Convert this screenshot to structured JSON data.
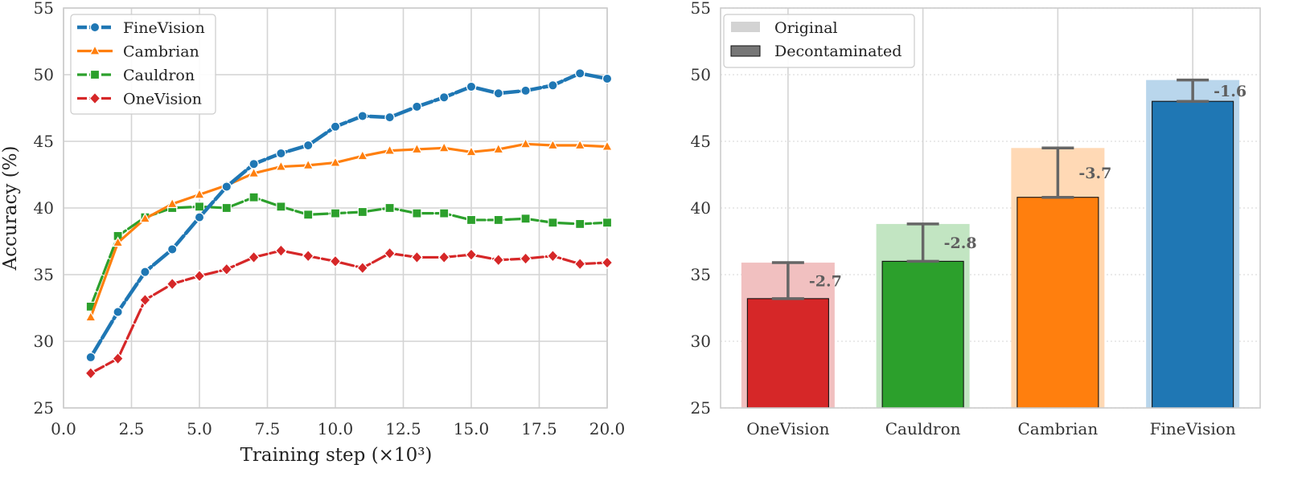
{
  "chart_data": [
    {
      "type": "line",
      "xlabel": "Training step (×10³)",
      "ylabel": "Accuracy (%)",
      "xlim": [
        0,
        20
      ],
      "ylim": [
        25,
        55
      ],
      "xticks": [
        "0.0",
        "2.5",
        "5.0",
        "7.5",
        "10.0",
        "12.5",
        "15.0",
        "17.5",
        "20.0"
      ],
      "yticks": [
        "25",
        "30",
        "35",
        "40",
        "45",
        "50",
        "55"
      ],
      "x": [
        1,
        2,
        3,
        4,
        5,
        6,
        7,
        8,
        9,
        10,
        11,
        12,
        13,
        14,
        15,
        16,
        17,
        18,
        19,
        20
      ],
      "legend_position": "top-left",
      "series": [
        {
          "name": "FineVision",
          "color": "#1f77b4",
          "marker": "circle",
          "style": "dashed",
          "values": [
            28.8,
            32.2,
            35.2,
            36.9,
            39.3,
            41.6,
            43.3,
            44.1,
            44.7,
            46.1,
            46.9,
            46.8,
            47.6,
            48.3,
            49.1,
            48.6,
            48.8,
            49.2,
            50.1,
            49.7
          ]
        },
        {
          "name": "Cambrian",
          "color": "#ff7f0e",
          "marker": "triangle",
          "style": "solid",
          "values": [
            31.8,
            37.4,
            39.2,
            40.3,
            41.0,
            41.7,
            42.6,
            43.1,
            43.2,
            43.4,
            43.9,
            44.3,
            44.4,
            44.5,
            44.2,
            44.4,
            44.8,
            44.7,
            44.7,
            44.6
          ]
        },
        {
          "name": "Cauldron",
          "color": "#2ca02c",
          "marker": "square",
          "style": "dashed",
          "values": [
            32.6,
            37.9,
            39.3,
            40.0,
            40.1,
            40.0,
            40.8,
            40.1,
            39.5,
            39.6,
            39.7,
            40.0,
            39.6,
            39.6,
            39.1,
            39.1,
            39.2,
            38.9,
            38.8,
            38.9
          ]
        },
        {
          "name": "OneVision",
          "color": "#d62728",
          "marker": "diamond",
          "style": "dashed",
          "values": [
            27.6,
            28.7,
            33.1,
            34.3,
            34.9,
            35.4,
            36.3,
            36.8,
            36.4,
            36.0,
            35.5,
            36.6,
            36.3,
            36.3,
            36.5,
            36.1,
            36.2,
            36.4,
            35.8,
            35.9
          ]
        }
      ]
    },
    {
      "type": "bar",
      "ylim": [
        25,
        55
      ],
      "yticks": [
        "25",
        "30",
        "35",
        "40",
        "45",
        "50",
        "55"
      ],
      "categories": [
        "OneVision",
        "Cauldron",
        "Cambrian",
        "FineVision"
      ],
      "legend_position": "top-left",
      "legend": [
        "Original",
        "Decontaminated"
      ],
      "series": [
        {
          "name": "Original",
          "values": [
            35.9,
            38.8,
            44.5,
            49.6
          ]
        },
        {
          "name": "Decontaminated",
          "values": [
            33.2,
            36.0,
            40.8,
            48.0
          ]
        }
      ],
      "colors": [
        "#d62728",
        "#2ca02c",
        "#ff7f0e",
        "#1f77b4"
      ],
      "light_colors": [
        "#f1c0c0",
        "#c2e5c2",
        "#ffd9b5",
        "#b9d6ec"
      ],
      "diff_labels": [
        "-2.7",
        "-2.8",
        "-3.7",
        "-1.6"
      ]
    }
  ]
}
